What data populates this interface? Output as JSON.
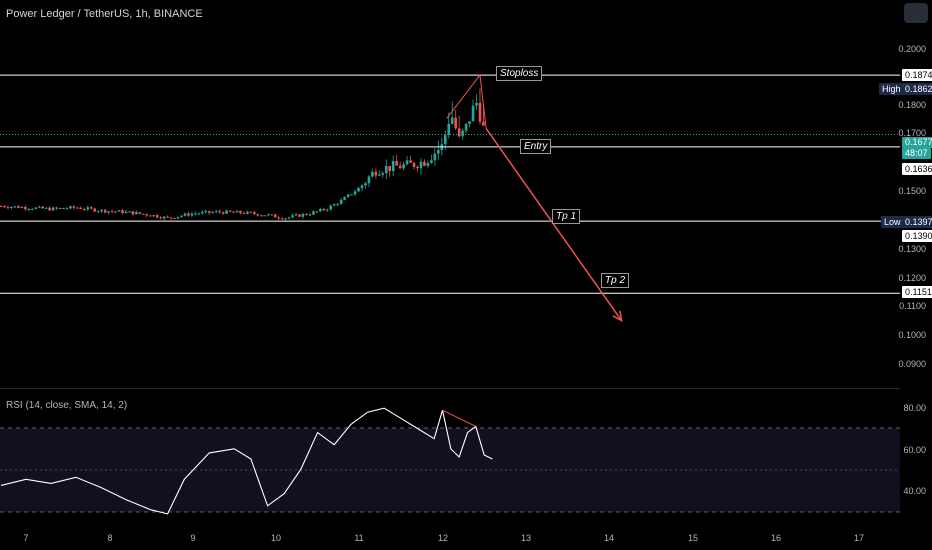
{
  "title": "Power Ledger / TetherUS, 1h, BINANCE",
  "rsi_label": "RSI (14, close, SMA, 14, 2)",
  "annotations": {
    "stoploss": "Stoploss",
    "entry": "Entry",
    "tp1": "Tp 1",
    "tp2": "Tp 2"
  },
  "price_axis": [
    "0.2000",
    "0.1800",
    "0.1700",
    "0.1500",
    "0.1300",
    "0.1200",
    "0.1100",
    "0.1000",
    "0.0900"
  ],
  "price_tags": {
    "stoploss": "0.1874",
    "high_label": "High",
    "high": "0.1862",
    "current": "0.1677",
    "countdown": "48:07",
    "entry": "0.1636",
    "low_label": "Low",
    "low": "0.1397",
    "tp1": "0.1390",
    "tp2": "0.1151"
  },
  "rsi_axis": [
    "80.00",
    "60.00",
    "40.00"
  ],
  "time_axis": [
    "7",
    "8",
    "9",
    "10",
    "11",
    "12",
    "13",
    "14",
    "15",
    "16",
    "17"
  ],
  "chart_data": {
    "type": "candlestick",
    "title": "Power Ledger / TetherUS, 1h, BINANCE",
    "horizontal_levels": [
      {
        "label": "Stoploss",
        "value": 0.1874
      },
      {
        "label": "Entry",
        "value": 0.1636
      },
      {
        "label": "Tp 1",
        "value": 0.139
      },
      {
        "label": "Tp 2",
        "value": 0.1151
      }
    ],
    "high": 0.1862,
    "low": 0.1397,
    "current_price": 0.1677,
    "price_range": [
      0.085,
      0.205
    ],
    "rsi_range": [
      25,
      85
    ],
    "arrow_target": 0.106,
    "colors": {
      "up": "#26a69a",
      "down": "#ef5350",
      "arrow": "#ef5350",
      "rsi": "#ffffff",
      "levels": "#ffffff"
    },
    "close_path": [
      {
        "t": 6.7,
        "p": 0.144
      },
      {
        "t": 7.0,
        "p": 0.1435
      },
      {
        "t": 7.3,
        "p": 0.143
      },
      {
        "t": 7.6,
        "p": 0.1435
      },
      {
        "t": 7.9,
        "p": 0.1425
      },
      {
        "t": 8.2,
        "p": 0.142
      },
      {
        "t": 8.5,
        "p": 0.141
      },
      {
        "t": 8.7,
        "p": 0.14
      },
      {
        "t": 9.0,
        "p": 0.1415
      },
      {
        "t": 9.3,
        "p": 0.142
      },
      {
        "t": 9.6,
        "p": 0.1418
      },
      {
        "t": 9.9,
        "p": 0.141
      },
      {
        "t": 10.1,
        "p": 0.14
      },
      {
        "t": 10.4,
        "p": 0.1415
      },
      {
        "t": 10.6,
        "p": 0.143
      },
      {
        "t": 10.8,
        "p": 0.146
      },
      {
        "t": 11.0,
        "p": 0.15
      },
      {
        "t": 11.2,
        "p": 0.156
      },
      {
        "t": 11.4,
        "p": 0.157
      },
      {
        "t": 11.6,
        "p": 0.1575
      },
      {
        "t": 11.8,
        "p": 0.159
      },
      {
        "t": 12.0,
        "p": 0.164
      },
      {
        "t": 12.1,
        "p": 0.175
      },
      {
        "t": 12.2,
        "p": 0.166
      },
      {
        "t": 12.3,
        "p": 0.171
      },
      {
        "t": 12.4,
        "p": 0.179
      },
      {
        "t": 12.5,
        "p": 0.169
      }
    ],
    "rsi": [
      {
        "t": 6.7,
        "v": 42
      },
      {
        "t": 7.0,
        "v": 45
      },
      {
        "t": 7.3,
        "v": 43
      },
      {
        "t": 7.6,
        "v": 46
      },
      {
        "t": 7.9,
        "v": 41
      },
      {
        "t": 8.2,
        "v": 35
      },
      {
        "t": 8.5,
        "v": 30
      },
      {
        "t": 8.7,
        "v": 28
      },
      {
        "t": 8.9,
        "v": 45
      },
      {
        "t": 9.2,
        "v": 58
      },
      {
        "t": 9.5,
        "v": 60
      },
      {
        "t": 9.7,
        "v": 55
      },
      {
        "t": 9.9,
        "v": 32
      },
      {
        "t": 10.1,
        "v": 38
      },
      {
        "t": 10.3,
        "v": 50
      },
      {
        "t": 10.5,
        "v": 68
      },
      {
        "t": 10.7,
        "v": 62
      },
      {
        "t": 10.9,
        "v": 72
      },
      {
        "t": 11.1,
        "v": 78
      },
      {
        "t": 11.3,
        "v": 80
      },
      {
        "t": 11.5,
        "v": 75
      },
      {
        "t": 11.7,
        "v": 70
      },
      {
        "t": 11.9,
        "v": 65
      },
      {
        "t": 12.0,
        "v": 79
      },
      {
        "t": 12.1,
        "v": 60
      },
      {
        "t": 12.2,
        "v": 56
      },
      {
        "t": 12.3,
        "v": 68
      },
      {
        "t": 12.4,
        "v": 71
      },
      {
        "t": 12.5,
        "v": 57
      },
      {
        "t": 12.6,
        "v": 55
      }
    ]
  }
}
